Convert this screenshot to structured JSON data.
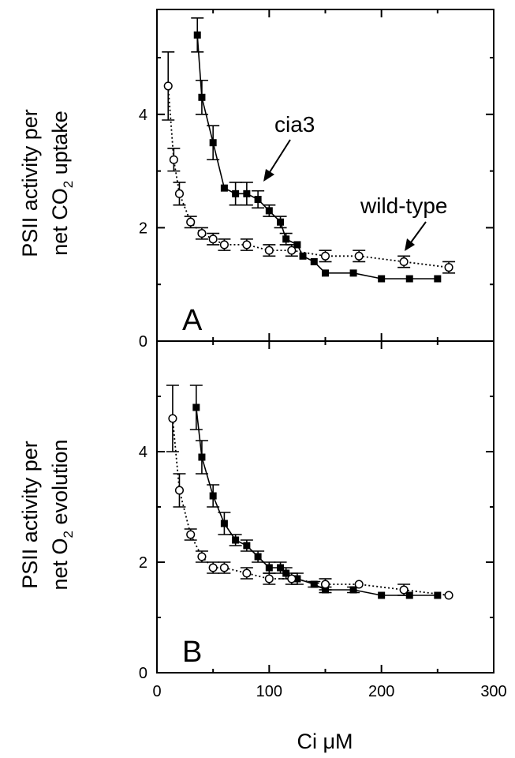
{
  "chart_data": [
    {
      "type": "scatter",
      "panel_label": "A",
      "ylabel_line1": "PSII activity per",
      "ylabel_line2_pre": "net CO",
      "ylabel_line2_sub": "2",
      "ylabel_line2_post": " uptake",
      "xlabel": "",
      "xlim": [
        0,
        300
      ],
      "ylim": [
        0,
        5.85
      ],
      "yticks": [
        0,
        2,
        4
      ],
      "annotations": [
        {
          "text": "cia3",
          "series": "cia3"
        },
        {
          "text": "wild-type",
          "series": "wild-type"
        }
      ],
      "series": [
        {
          "name": "cia3",
          "marker": "filled-square",
          "line": "solid",
          "x": [
            36,
            40,
            50,
            60,
            70,
            80,
            90,
            100,
            110,
            115,
            125,
            130,
            140,
            150,
            175,
            200,
            225,
            250
          ],
          "y": [
            5.4,
            4.3,
            3.5,
            2.7,
            2.6,
            2.6,
            2.5,
            2.3,
            2.1,
            1.8,
            1.7,
            1.5,
            1.4,
            1.2,
            1.2,
            1.1,
            1.1,
            1.1
          ],
          "err": [
            0.3,
            0.3,
            0.3,
            0,
            0.2,
            0.2,
            0.15,
            0.1,
            0.1,
            0.1,
            0,
            0,
            0,
            0,
            0,
            0,
            0,
            0
          ]
        },
        {
          "name": "wild-type",
          "marker": "open-circle",
          "line": "dotted",
          "x": [
            10,
            15,
            20,
            30,
            40,
            50,
            60,
            80,
            100,
            120,
            150,
            180,
            220,
            260
          ],
          "y": [
            4.5,
            3.2,
            2.6,
            2.1,
            1.9,
            1.8,
            1.7,
            1.7,
            1.6,
            1.6,
            1.5,
            1.5,
            1.4,
            1.3
          ],
          "err": [
            0.6,
            0.2,
            0.2,
            0.1,
            0.1,
            0.1,
            0.1,
            0.1,
            0.1,
            0.1,
            0.1,
            0.1,
            0.1,
            0.1
          ]
        }
      ]
    },
    {
      "type": "scatter",
      "panel_label": "B",
      "ylabel_line1": "PSII activity per",
      "ylabel_line2_pre": "net O",
      "ylabel_line2_sub": "2",
      "ylabel_line2_post": " evolution",
      "xlabel": "Ci μM",
      "xlim": [
        0,
        300
      ],
      "ylim": [
        0,
        6
      ],
      "xticks": [
        0,
        100,
        200,
        300
      ],
      "yticks": [
        0,
        2,
        4
      ],
      "series": [
        {
          "name": "cia3",
          "marker": "filled-square",
          "line": "solid",
          "x": [
            35,
            40,
            50,
            60,
            70,
            80,
            90,
            100,
            110,
            115,
            125,
            140,
            150,
            175,
            200,
            225,
            250
          ],
          "y": [
            4.8,
            3.9,
            3.2,
            2.7,
            2.4,
            2.3,
            2.1,
            1.9,
            1.9,
            1.8,
            1.7,
            1.6,
            1.5,
            1.5,
            1.4,
            1.4,
            1.4
          ],
          "err": [
            0.4,
            0.3,
            0.2,
            0.2,
            0.1,
            0.1,
            0.1,
            0.1,
            0.1,
            0.1,
            0.1,
            0.05,
            0.05,
            0.05,
            0,
            0,
            0
          ]
        },
        {
          "name": "wild-type",
          "marker": "open-circle",
          "line": "dotted",
          "x": [
            14,
            20,
            30,
            40,
            50,
            60,
            80,
            100,
            120,
            150,
            180,
            220,
            260
          ],
          "y": [
            4.6,
            3.3,
            2.5,
            2.1,
            1.9,
            1.9,
            1.8,
            1.7,
            1.7,
            1.6,
            1.6,
            1.5,
            1.4
          ],
          "err": [
            0.6,
            0.3,
            0.1,
            0.1,
            0.1,
            0.1,
            0.1,
            0.1,
            0.1,
            0.1,
            0,
            0.1,
            0
          ]
        }
      ]
    }
  ]
}
